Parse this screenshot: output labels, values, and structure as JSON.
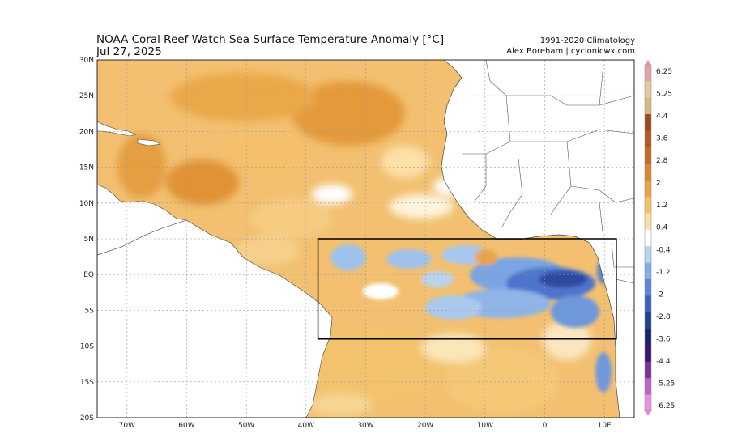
{
  "header": {
    "title": "NOAA Coral Reef Watch Sea Surface Temperature Anomaly [°C]",
    "date": "Jul 27, 2025",
    "climatology": "1991-2020 Climatology",
    "credit": "Alex Boreham | cyclonicwx.com"
  },
  "map": {
    "lat_labels": [
      "30N",
      "25N",
      "20N",
      "15N",
      "10N",
      "5N",
      "EQ",
      "5S",
      "10S",
      "15S",
      "20S"
    ],
    "lon_labels": [
      "70W",
      "60W",
      "50W",
      "40W",
      "30W",
      "20W",
      "10W",
      "0",
      "10E"
    ],
    "lat_values": [
      30,
      25,
      20,
      15,
      10,
      5,
      0,
      -5,
      -10,
      -15,
      -20
    ],
    "lon_values": [
      -70,
      -60,
      -50,
      -40,
      -30,
      -20,
      -10,
      0,
      10
    ],
    "extent": {
      "lon_min": -75,
      "lon_max": 15,
      "lat_min": -20,
      "lat_max": 30
    },
    "highlight_box": {
      "lon_min": -38,
      "lon_max": 12,
      "lat_min": -9,
      "lat_max": 5
    },
    "ocean_color": "#f2c070",
    "land_color": "#ffffff"
  },
  "colorbar": {
    "labels": [
      "6.25",
      "5.25",
      "4.4",
      "3.6",
      "2.8",
      "2",
      "1.2",
      "0.4",
      "-0.4",
      "-1.2",
      "-2",
      "-2.8",
      "-3.6",
      "-4.4",
      "-5.25",
      "-6.25"
    ],
    "colors": [
      "#e8a0a8",
      "#e8c8a0",
      "#d8b880",
      "#9a4a1a",
      "#b05a20",
      "#c66a28",
      "#d8892f",
      "#eba33f",
      "#f5c267",
      "#fbe1a4",
      "#ffffff",
      "#b8d4f0",
      "#86aee6",
      "#5a86d8",
      "#3a62c0",
      "#26408e",
      "#18226a",
      "#3b1470",
      "#80309a",
      "#c060c8",
      "#e890e0"
    ]
  }
}
